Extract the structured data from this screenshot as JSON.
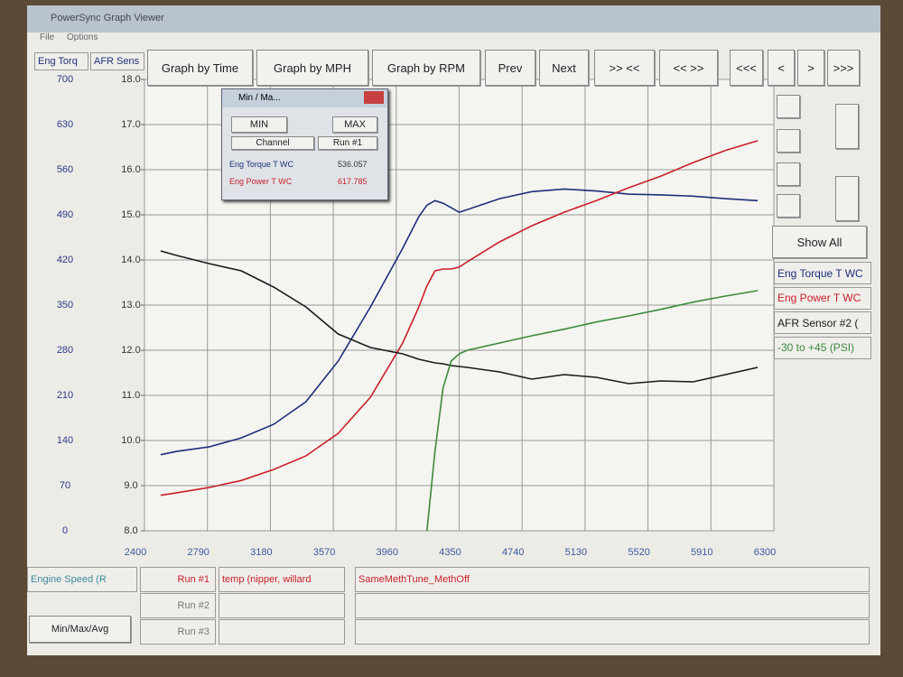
{
  "window": {
    "title": "PowerSync Graph Viewer",
    "menu": [
      "File",
      "Options"
    ]
  },
  "toolbar": {
    "axis_headers": [
      "Eng Torq",
      "AFR Sens"
    ],
    "buttons": [
      "Graph by Time",
      "Graph by MPH",
      "Graph by RPM",
      "Prev",
      "Next",
      ">> <<",
      "<< >>",
      "<<<",
      "<",
      ">",
      ">>>"
    ],
    "show_all": "Show All"
  },
  "minmax": {
    "title": "Min / Ma...",
    "min": "MIN",
    "max": "MAX",
    "channel": "Channel",
    "run": "Run #1",
    "rows": [
      [
        "Eng Torque T WC",
        "536.057"
      ],
      [
        "Eng Power T WC",
        "617.785"
      ]
    ]
  },
  "runs": {
    "axis": "Engine Speed (R",
    "button": "Min/Max/Avg",
    "rows": [
      [
        "Run #1",
        "temp (nipper, willard",
        "SameMethTune_MethOff"
      ],
      [
        "Run #2"
      ],
      [
        "Run #3"
      ]
    ]
  },
  "chart_data": {
    "type": "line",
    "x": [
      2500,
      2600,
      2800,
      3000,
      3200,
      3400,
      3600,
      3800,
      4000,
      4100,
      4150,
      4200,
      4250,
      4300,
      4350,
      4400,
      4600,
      4800,
      5000,
      5200,
      5400,
      5600,
      5800,
      6000,
      6200
    ],
    "xlim": [
      2400,
      6300
    ],
    "xticks": [
      2400,
      2790,
      3180,
      3570,
      3960,
      4350,
      4740,
      5130,
      5520,
      5910,
      6300
    ],
    "ylim": [
      0,
      700
    ],
    "yticks": [
      0,
      70,
      140,
      210,
      280,
      350,
      420,
      490,
      560,
      630,
      700
    ],
    "y2lim": [
      8,
      18
    ],
    "y2ticks": [
      {
        "value": 8,
        "label": "8.0"
      },
      {
        "value": 9,
        "label": "9.0"
      },
      {
        "value": 10,
        "label": "10.0"
      },
      {
        "value": 11,
        "label": "11.0"
      },
      {
        "value": 12,
        "label": "12.0"
      },
      {
        "value": 13,
        "label": "13.0"
      },
      {
        "value": 14,
        "label": "14.0"
      },
      {
        "value": 15,
        "label": "15.0"
      },
      {
        "value": 16,
        "label": "16.0"
      },
      {
        "value": 17,
        "label": "17.0"
      },
      {
        "value": 18,
        "label": "18.0"
      }
    ],
    "y3lim": [
      -30,
      45
    ],
    "grid": true,
    "series": [
      {
        "name": "Eng Torque T WC",
        "color": "#1d2f7a",
        "axis": "y",
        "values": [
          118,
          123,
          130,
          144,
          165,
          200,
          263,
          347,
          438,
          487,
          505,
          512,
          508,
          501,
          494,
          498,
          515,
          526,
          530,
          527,
          522,
          521,
          519,
          515,
          512
        ]
      },
      {
        "name": "Eng Power T WC",
        "color": "#c8202a",
        "axis": "y",
        "values": [
          55,
          59,
          67,
          78,
          95,
          116,
          151,
          207,
          291,
          347,
          380,
          403,
          406,
          406,
          409,
          417,
          448,
          473,
          494,
          512,
          532,
          550,
          571,
          590,
          605
        ]
      },
      {
        "name": "AFR Sensor #2 (",
        "color": "#1a1a1a",
        "axis": "y2",
        "values": [
          14.2,
          14.1,
          13.92,
          13.76,
          13.4,
          12.96,
          12.36,
          12.06,
          11.92,
          11.8,
          11.76,
          11.72,
          11.7,
          11.66,
          11.64,
          11.62,
          11.52,
          11.36,
          11.46,
          11.4,
          11.26,
          11.32,
          11.3,
          11.46,
          11.62
        ]
      },
      {
        "name": "-30 to +45 (PSI)",
        "color": "#3c8a3c",
        "axis": "y3",
        "values": [
          null,
          null,
          null,
          null,
          null,
          null,
          null,
          null,
          null,
          null,
          -30,
          -16.8,
          -6.3,
          -1.8,
          -0.6,
          0,
          1.2,
          2.4,
          3.5,
          4.7,
          5.7,
          6.8,
          8,
          9,
          9.9
        ]
      }
    ]
  }
}
